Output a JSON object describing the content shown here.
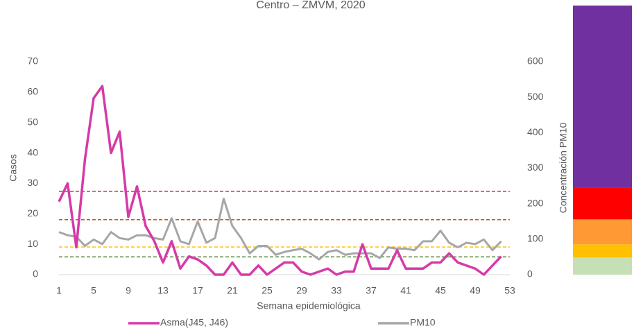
{
  "chart_data": {
    "type": "line",
    "title": "Centro – ZMVM, 2020",
    "x_label": "Semana epidemiológica",
    "y_label": "Casos",
    "y2_label": "Concentración PM10",
    "x": [
      1,
      2,
      3,
      4,
      5,
      6,
      7,
      8,
      9,
      10,
      11,
      12,
      13,
      14,
      15,
      16,
      17,
      18,
      19,
      20,
      21,
      22,
      23,
      24,
      25,
      26,
      27,
      28,
      29,
      30,
      31,
      32,
      33,
      34,
      35,
      36,
      37,
      38,
      39,
      40,
      41,
      42,
      43,
      44,
      45,
      46,
      47,
      48,
      49,
      50,
      51,
      52
    ],
    "xlim": [
      1,
      53
    ],
    "xticks": [
      1,
      5,
      9,
      13,
      17,
      21,
      25,
      29,
      33,
      37,
      41,
      45,
      49,
      53
    ],
    "ylim": [
      0,
      70
    ],
    "yticks": [
      0,
      10,
      20,
      30,
      40,
      50,
      60,
      70
    ],
    "y2lim": [
      0,
      600
    ],
    "y2ticks": [
      0,
      100,
      200,
      300,
      400,
      500,
      600
    ],
    "series": [
      {
        "name": "Asma(J45, J46)",
        "color": "#d63aa8",
        "values": [
          24,
          30,
          9,
          38,
          58,
          62,
          40,
          47,
          19,
          29,
          16,
          11,
          4,
          11,
          2,
          6,
          5,
          3,
          0,
          0,
          4,
          0,
          0,
          3,
          0,
          2,
          4,
          4,
          1,
          0,
          1,
          2,
          0,
          1,
          1,
          10,
          2,
          2,
          2,
          8,
          2,
          2,
          2,
          4,
          4,
          7,
          4,
          3,
          2,
          0,
          3,
          6
        ]
      },
      {
        "name": "PM10",
        "color": "#a6a6a6",
        "axis": "y2",
        "values": [
          120,
          111,
          107,
          81,
          99,
          86,
          120,
          103,
          99,
          111,
          111,
          103,
          99,
          159,
          94,
          86,
          150,
          90,
          103,
          214,
          137,
          103,
          60,
          81,
          81,
          56,
          64,
          69,
          73,
          60,
          43,
          64,
          69,
          56,
          60,
          60,
          60,
          47,
          77,
          73,
          73,
          69,
          94,
          94,
          124,
          90,
          77,
          90,
          86,
          99,
          69,
          94
        ]
      }
    ],
    "thresholds": [
      {
        "value": 235,
        "color": "#e02020"
      },
      {
        "value": 155,
        "color": "#c55a11"
      },
      {
        "value": 78,
        "color": "#ffc000"
      },
      {
        "value": 50,
        "color": "#548235"
      }
    ],
    "bands": [
      {
        "from": 0,
        "to": 48,
        "color": "#c5e0b4"
      },
      {
        "from": 48,
        "to": 85,
        "color": "#ffc000"
      },
      {
        "from": 85,
        "to": 155,
        "color": "#ff9933"
      },
      {
        "from": 155,
        "to": 245,
        "color": "#ff0000"
      },
      {
        "from": 245,
        "to": 755,
        "color": "#7030a0"
      }
    ]
  }
}
